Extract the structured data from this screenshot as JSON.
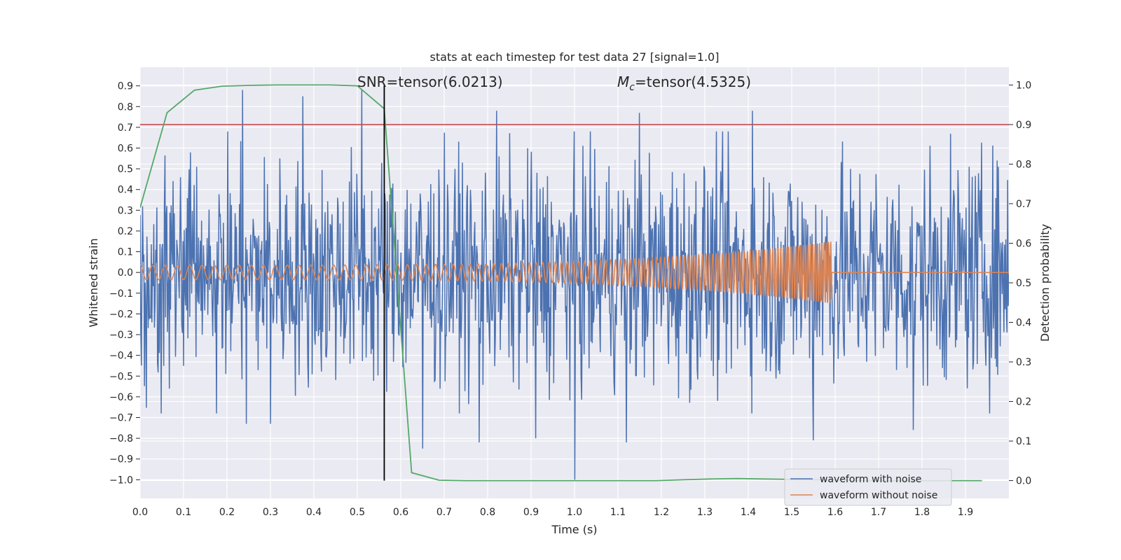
{
  "chart_data": {
    "type": "line",
    "title": "stats at each timestep for test data 27 [signal=1.0]",
    "xlabel": "Time (s)",
    "ylabel_left": "Whitened strain",
    "ylabel_right": "Detection probability",
    "xlim": [
      0.0,
      2.0
    ],
    "ylim_left": [
      -1.09,
      0.99
    ],
    "ylim_right": [
      -0.045,
      1.045
    ],
    "x_ticks": [
      "0.0",
      "0.1",
      "0.2",
      "0.3",
      "0.4",
      "0.5",
      "0.6",
      "0.7",
      "0.8",
      "0.9",
      "1.0",
      "1.1",
      "1.2",
      "1.3",
      "1.4",
      "1.5",
      "1.6",
      "1.7",
      "1.8",
      "1.9"
    ],
    "y_ticks_left": [
      "0.9",
      "0.8",
      "0.7",
      "0.6",
      "0.5",
      "0.4",
      "0.3",
      "0.2",
      "0.1",
      "0.0",
      "−0.1",
      "−0.2",
      "−0.3",
      "−0.4",
      "−0.5",
      "−0.6",
      "−0.7",
      "−0.8",
      "−0.9",
      "−1.0"
    ],
    "y_ticks_right": [
      "1.0",
      "0.9",
      "0.8",
      "0.7",
      "0.6",
      "0.5",
      "0.4",
      "0.3",
      "0.2",
      "0.1",
      "0.0"
    ],
    "grid": true,
    "legend_placement": "lower-right",
    "annotations": {
      "snr_label": "SNR=tensor(6.0213)",
      "mc_prefix": "M",
      "mc_sub": "c",
      "mc_value": "=tensor(4.5325)"
    },
    "series": [
      {
        "name": "waveform with noise",
        "color": "#4c72b0",
        "axis": "left",
        "x_range": [
          0.0,
          2.0
        ],
        "envelope": 0.5,
        "peaks": [
          [
            0.236,
            0.88
          ],
          [
            0.375,
            0.85
          ],
          [
            0.51,
            0.88
          ],
          [
            0.82,
            0.78
          ],
          [
            1.15,
            0.77
          ],
          [
            1.41,
            0.78
          ],
          [
            1.0,
            -1.0
          ],
          [
            0.65,
            -0.85
          ],
          [
            0.78,
            -0.82
          ],
          [
            0.91,
            -0.8
          ],
          [
            1.12,
            -0.82
          ],
          [
            1.55,
            -0.81
          ],
          [
            1.78,
            -0.76
          ],
          [
            0.245,
            -0.73
          ],
          [
            0.3,
            -0.73
          ]
        ]
      },
      {
        "name": "waveform without noise",
        "color": "#dd8452",
        "axis": "left",
        "chirp_end": 1.592,
        "amp_start": 0.035,
        "amp_end": 0.15,
        "freq_start": 35,
        "freq_end": 200
      },
      {
        "color": "#55a868",
        "axis": "right",
        "x": [
          0.0,
          0.062,
          0.125,
          0.188,
          0.25,
          0.312,
          0.375,
          0.438,
          0.5,
          0.562,
          0.625,
          0.688,
          0.75,
          0.812,
          0.875,
          0.938,
          1.0,
          1.062,
          1.125,
          1.188,
          1.25,
          1.312,
          1.375,
          1.438,
          1.5,
          1.562,
          1.625,
          1.688,
          1.75,
          1.812,
          1.875,
          1.938
        ],
        "y": [
          0.69,
          0.93,
          0.987,
          0.997,
          0.999,
          1.0,
          1.0,
          1.0,
          0.998,
          0.94,
          0.02,
          0.001,
          0.0,
          0.0,
          0.0,
          0.0,
          0.0,
          0.0,
          0.0,
          0.0,
          0.002,
          0.004,
          0.005,
          0.004,
          0.003,
          0.002,
          0.001,
          0.0,
          0.0,
          0.0,
          0.0,
          0.0
        ]
      }
    ],
    "threshold": {
      "color": "#c44e52",
      "axis": "right",
      "y": 0.9
    },
    "marker_line": {
      "color": "#000000",
      "x": 0.562
    }
  }
}
